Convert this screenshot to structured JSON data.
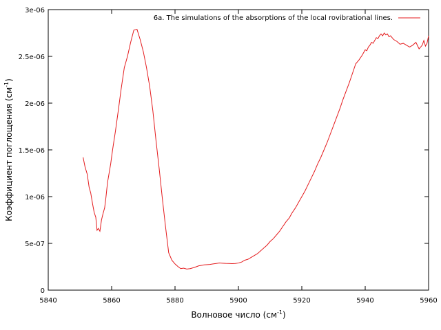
{
  "chart_data": {
    "type": "line",
    "title": "",
    "xlabel_main": "Волновое число (см",
    "xlabel_sup": "-1",
    "xlabel_end": ")",
    "ylabel_main": "Коэффициент поглощения (см",
    "ylabel_sup": "-1",
    "ylabel_end": ")",
    "xlim": [
      5840,
      5960
    ],
    "ylim": [
      0,
      3e-06
    ],
    "xticks": [
      5840,
      5860,
      5880,
      5900,
      5920,
      5940,
      5960
    ],
    "xtick_labels": [
      "5840",
      "5860",
      "5880",
      "5900",
      "5920",
      "5940",
      "5960"
    ],
    "yticks": [
      0,
      5e-07,
      1e-06,
      1.5e-06,
      2e-06,
      2.5e-06,
      3e-06
    ],
    "ytick_labels": [
      "0",
      "5e-07",
      "1e-06",
      "1.5e-06",
      "2e-06",
      "2.5e-06",
      "3e-06"
    ],
    "grid": false,
    "legend_position": "top-right",
    "line_color": "#e41a1c",
    "series": [
      {
        "name": "6a. The simulations of the absorptions of the local rovibrational lines.",
        "x": [
          5851.0,
          5851.6,
          5852.3,
          5852.9,
          5853.4,
          5854.0,
          5854.5,
          5855.0,
          5855.4,
          5855.8,
          5856.3,
          5856.8,
          5857.3,
          5857.8,
          5858.2,
          5858.7,
          5859.2,
          5859.7,
          5860.3,
          5861.2,
          5862.1,
          5863.0,
          5864.0,
          5865.0,
          5866.0,
          5867.0,
          5868.0,
          5869.0,
          5870.0,
          5871.0,
          5872.0,
          5873.0,
          5874.0,
          5875.0,
          5876.0,
          5877.0,
          5878.0,
          5879.0,
          5880.0,
          5881.0,
          5881.8,
          5882.7,
          5883.7,
          5884.8,
          5885.8,
          5886.7,
          5887.5,
          5888.3,
          5889.2,
          5890.0,
          5891.0,
          5892.0,
          5893.0,
          5894.0,
          5895.0,
          5896.0,
          5897.0,
          5898.0,
          5899.0,
          5900.0,
          5901.0,
          5902.0,
          5903.0,
          5904.0,
          5905.0,
          5906.0,
          5907.0,
          5908.0,
          5909.0,
          5910.0,
          5911.0,
          5912.0,
          5913.0,
          5914.0,
          5915.0,
          5916.0,
          5917.0,
          5918.0,
          5919.0,
          5920.0,
          5921.0,
          5922.0,
          5923.0,
          5924.0,
          5925.0,
          5926.0,
          5927.0,
          5928.0,
          5929.0,
          5930.0,
          5931.0,
          5932.0,
          5933.0,
          5934.0,
          5935.0,
          5936.0,
          5937.0,
          5938.0,
          5939.0,
          5940.0,
          5940.5,
          5941.0,
          5941.5,
          5942.0,
          5942.5,
          5943.0,
          5943.5,
          5944.0,
          5944.5,
          5945.0,
          5945.5,
          5946.0,
          5946.5,
          5947.0,
          5947.5,
          5948.0,
          5948.5,
          5949.0,
          5950.0,
          5951.0,
          5952.0,
          5953.0,
          5954.0,
          5955.0,
          5956.0,
          5957.0,
          5958.0,
          5958.5,
          5959.0,
          5959.5,
          5960.0
        ],
        "y": [
          1.42e-06,
          1.32e-06,
          1.24e-06,
          1.1e-06,
          1.04e-06,
          9.2e-07,
          8.3e-07,
          7.8e-07,
          6.4e-07,
          6.6e-07,
          6.3e-07,
          7.5e-07,
          8.2e-07,
          8.8e-07,
          9.9e-07,
          1.15e-06,
          1.25e-06,
          1.35e-06,
          1.5e-06,
          1.7e-06,
          1.92e-06,
          2.15e-06,
          2.38e-06,
          2.5e-06,
          2.65e-06,
          2.78e-06,
          2.79e-06,
          2.68e-06,
          2.55e-06,
          2.38e-06,
          2.18e-06,
          1.92e-06,
          1.6e-06,
          1.3e-06,
          9.8e-07,
          6.8e-07,
          4e-07,
          3.2e-07,
          2.8e-07,
          2.5e-07,
          2.3e-07,
          2.35e-07,
          2.25e-07,
          2.3e-07,
          2.4e-07,
          2.5e-07,
          2.6e-07,
          2.65e-07,
          2.7e-07,
          2.72e-07,
          2.75e-07,
          2.8e-07,
          2.85e-07,
          2.9e-07,
          2.88e-07,
          2.86e-07,
          2.85e-07,
          2.83e-07,
          2.85e-07,
          2.9e-07,
          3e-07,
          3.2e-07,
          3.3e-07,
          3.5e-07,
          3.7e-07,
          3.9e-07,
          4.2e-07,
          4.5e-07,
          4.8e-07,
          5.2e-07,
          5.5e-07,
          5.9e-07,
          6.3e-07,
          6.8e-07,
          7.3e-07,
          7.7e-07,
          8.3e-07,
          8.8e-07,
          9.4e-07,
          1e-06,
          1.06e-06,
          1.13e-06,
          1.2e-06,
          1.27e-06,
          1.35e-06,
          1.42e-06,
          1.5e-06,
          1.58e-06,
          1.67e-06,
          1.76e-06,
          1.85e-06,
          1.94e-06,
          2.04e-06,
          2.13e-06,
          2.22e-06,
          2.32e-06,
          2.42e-06,
          2.46e-06,
          2.51e-06,
          2.57e-06,
          2.56e-06,
          2.6e-06,
          2.62e-06,
          2.65e-06,
          2.64e-06,
          2.67e-06,
          2.7e-06,
          2.69e-06,
          2.72e-06,
          2.74e-06,
          2.72e-06,
          2.75e-06,
          2.73e-06,
          2.74e-06,
          2.71e-06,
          2.72e-06,
          2.7e-06,
          2.68e-06,
          2.66e-06,
          2.63e-06,
          2.64e-06,
          2.62e-06,
          2.6e-06,
          2.62e-06,
          2.65e-06,
          2.58e-06,
          2.62e-06,
          2.67e-06,
          2.61e-06,
          2.64e-06,
          2.72e-06
        ]
      }
    ]
  }
}
